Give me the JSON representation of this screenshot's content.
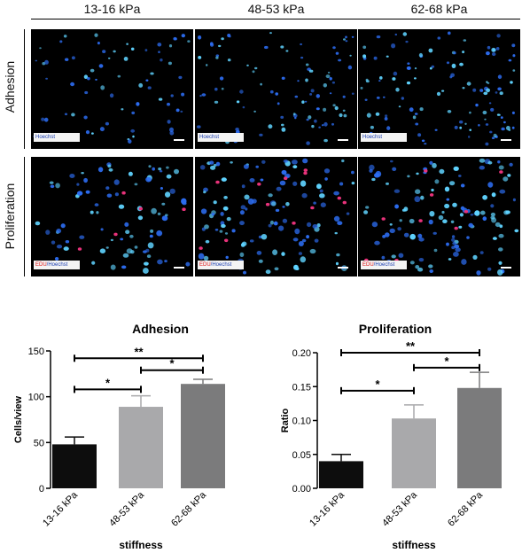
{
  "columns": [
    "13-16 kPa",
    "48-53 kPa",
    "62-68 kPa"
  ],
  "rows": [
    {
      "label": "Adhesion",
      "panel_tag": "Hoechst",
      "tag_red": "",
      "tag_blue": "Hoechst"
    },
    {
      "label": "Proliferation",
      "panel_tag": "EDU/Hoechst",
      "tag_red": "EDU",
      "tag_blue": "/Hoechst"
    }
  ],
  "colors": {
    "bar1": "#0d0d0d",
    "bar2": "#a9a9ab",
    "bar3": "#7b7b7c",
    "nuclei_blue": "#2c6cf0",
    "nuclei_cyan": "#5fd3ff",
    "nuclei_red": "#e8327a"
  },
  "chart_data": [
    {
      "type": "bar",
      "title": "Adhesion",
      "xlabel": "stiffness",
      "ylabel": "Cells/view",
      "categories": [
        "13-16 kPa",
        "48-53 kPa",
        "62-68 kPa"
      ],
      "values": [
        48,
        89,
        114
      ],
      "errors": [
        8,
        12,
        5
      ],
      "ylim": [
        0,
        150
      ],
      "yticks": [
        0,
        50,
        100,
        150
      ],
      "ytick_labels": [
        "0",
        "50",
        "100",
        "150"
      ],
      "significance": [
        {
          "from": 0,
          "to": 2,
          "label": "**",
          "y": 142
        },
        {
          "from": 1,
          "to": 2,
          "label": "*",
          "y": 129
        },
        {
          "from": 0,
          "to": 1,
          "label": "*",
          "y": 108
        }
      ]
    },
    {
      "type": "bar",
      "title": "Proliferation",
      "xlabel": "stiffness",
      "ylabel": "Ratio",
      "categories": [
        "13-16 kPa",
        "48-53 kPa",
        "62-68 kPa"
      ],
      "values": [
        0.04,
        0.103,
        0.148
      ],
      "errors": [
        0.01,
        0.02,
        0.023
      ],
      "ylim": [
        0,
        0.2
      ],
      "yticks": [
        0,
        0.05,
        0.1,
        0.15,
        0.2
      ],
      "ytick_labels": [
        "0.00",
        "0.05",
        "0.10",
        "0.15",
        "0.20"
      ],
      "significance": [
        {
          "from": 0,
          "to": 2,
          "label": "**",
          "y": 0.2
        },
        {
          "from": 1,
          "to": 2,
          "label": "*",
          "y": 0.178
        },
        {
          "from": 0,
          "to": 1,
          "label": "*",
          "y": 0.144
        }
      ]
    }
  ]
}
